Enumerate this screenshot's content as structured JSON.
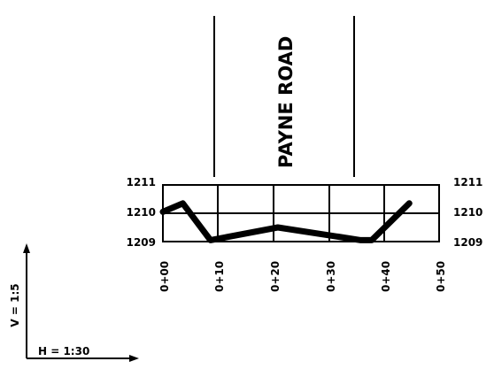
{
  "road_name": "PAYNE ROAD",
  "scale": {
    "vertical": "V = 1:5",
    "horizontal": "H = 1:30"
  },
  "elevation_labels_left": [
    "1211",
    "1210",
    "1209"
  ],
  "elevation_labels_right": [
    "1211",
    "1210",
    "1209"
  ],
  "station_labels": [
    "0+00",
    "0+10",
    "0+20",
    "0+30",
    "0+40",
    "0+50"
  ],
  "chart_data": {
    "type": "line",
    "xlabel": "",
    "ylabel": "",
    "x_ticks": [
      "0+00",
      "0+10",
      "0+20",
      "0+30",
      "0+40",
      "0+50"
    ],
    "y_ticks": [
      1209,
      1210,
      1211
    ],
    "xlim": [
      0,
      50
    ],
    "ylim": [
      1209,
      1211
    ],
    "grid": true,
    "road_edges_station": [
      9.6,
      36.7
    ],
    "series": [
      {
        "x": [
          0,
          3.6,
          8.6,
          20.8,
          35.8,
          37.8,
          44.6
        ],
        "y": [
          1210.05,
          1210.35,
          1209.05,
          1209.5,
          1209.05,
          1209.05,
          1210.35
        ]
      }
    ]
  }
}
